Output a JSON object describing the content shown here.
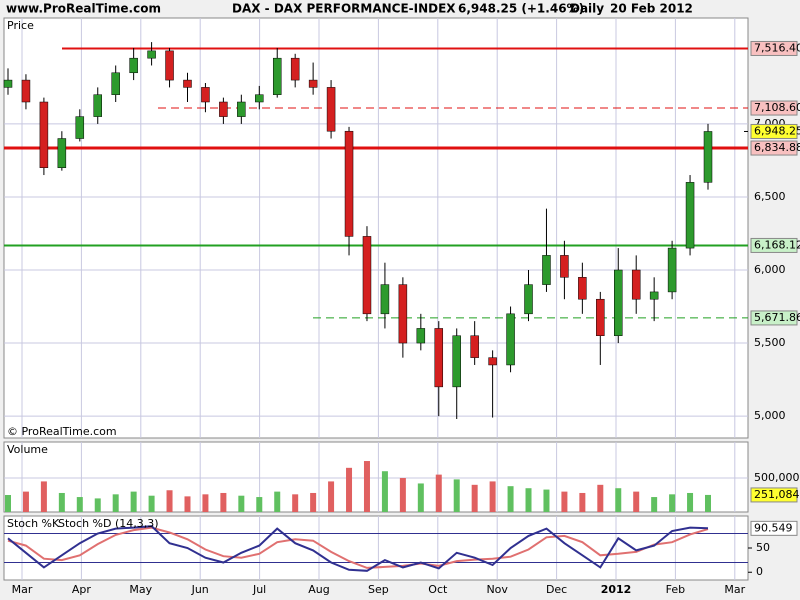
{
  "header": {
    "site": "www.ProRealTime.com",
    "title": "DAX - DAX PERFORMANCE-INDEX",
    "quote": "6,948.25 (+1.46%)",
    "period": "Daily",
    "date": "20 Feb 2012"
  },
  "x_labels": [
    "Mar",
    "Apr",
    "May",
    "Jun",
    "Jul",
    "Aug",
    "Sep",
    "Oct",
    "Nov",
    "Dec",
    "2012",
    "Feb",
    "Mar"
  ],
  "chart_data": [
    {
      "type": "candlestick",
      "label": "Price",
      "footer": "© ProRealTime.com",
      "up_color": "#2d9a2d",
      "down_color": "#d42020",
      "open": [
        7250,
        7300,
        7150,
        6700,
        6900,
        7050,
        7200,
        7350,
        7450,
        7500,
        7300,
        7250,
        7150,
        7050,
        7150,
        7200,
        7450,
        7300,
        7250,
        6950,
        6230,
        5700,
        5900,
        5500,
        5600,
        5200,
        5550,
        5400,
        5350,
        5700,
        5900,
        6100,
        5950,
        5800,
        5550,
        6000,
        5800,
        5850,
        6150,
        6600
      ],
      "high": [
        7380,
        7340,
        7180,
        6950,
        7100,
        7250,
        7400,
        7520,
        7560,
        7520,
        7350,
        7280,
        7180,
        7200,
        7260,
        7520,
        7480,
        7420,
        7300,
        6980,
        6300,
        6050,
        5950,
        5700,
        5650,
        5600,
        5650,
        5450,
        5750,
        6000,
        6420,
        6200,
        6050,
        5850,
        6150,
        6100,
        5950,
        6200,
        6650,
        7000
      ],
      "low": [
        7200,
        7100,
        6650,
        6680,
        6880,
        7000,
        7150,
        7300,
        7400,
        7250,
        7150,
        7080,
        7000,
        7000,
        7100,
        7180,
        7250,
        7200,
        6900,
        6100,
        5650,
        5600,
        5400,
        5450,
        5000,
        4980,
        5350,
        4990,
        5300,
        5650,
        5850,
        5800,
        5700,
        5350,
        5500,
        5700,
        5650,
        5800,
        6100,
        6550
      ],
      "close": [
        7300,
        7150,
        6700,
        6900,
        7050,
        7200,
        7350,
        7450,
        7500,
        7300,
        7250,
        7150,
        7050,
        7150,
        7200,
        7450,
        7300,
        7250,
        6950,
        6230,
        5700,
        5900,
        5500,
        5600,
        5200,
        5550,
        5400,
        5350,
        5700,
        5900,
        6100,
        5950,
        5800,
        5550,
        6000,
        5800,
        5850,
        6150,
        6600,
        6948.25
      ],
      "ylim": [
        4850,
        7725
      ],
      "yticks": [
        {
          "value": 5000,
          "label": "5,000"
        },
        {
          "value": 5500,
          "label": "5,500"
        },
        {
          "value": 6000,
          "label": "6,000"
        },
        {
          "value": 6500,
          "label": "6,500"
        },
        {
          "value": 7000,
          "label": "7,000"
        }
      ],
      "levels": [
        {
          "value": 7516.4,
          "label": "7,516.40",
          "color": "#e01010",
          "dashed": false
        },
        {
          "value": 7108.6,
          "label": "7,108.60",
          "color": "#e01010",
          "dashed": true
        },
        {
          "value": 6834.88,
          "label": "6,834.88",
          "color": "#e01010",
          "dashed": false
        },
        {
          "value": 6168.12,
          "label": "6,168.12",
          "color": "#22a022",
          "dashed": false
        },
        {
          "value": 5671.86,
          "label": "5,671.86",
          "color": "#22a022",
          "dashed": true
        }
      ],
      "last": {
        "value": 6948.25,
        "label": "6,948.25",
        "color": "#ffff30"
      }
    },
    {
      "type": "bar",
      "label": "Volume",
      "values": [
        250000,
        300000,
        450000,
        280000,
        220000,
        200000,
        260000,
        300000,
        240000,
        320000,
        230000,
        260000,
        280000,
        240000,
        220000,
        300000,
        260000,
        280000,
        450000,
        650000,
        750000,
        600000,
        500000,
        420000,
        550000,
        480000,
        400000,
        450000,
        380000,
        350000,
        330000,
        300000,
        280000,
        400000,
        350000,
        300000,
        220000,
        260000,
        280000,
        251084
      ],
      "ylim": [
        0,
        1030000
      ],
      "yticks": [
        {
          "value": 500000,
          "label": "500,000"
        }
      ],
      "last": {
        "value": 251084,
        "label": "251,084",
        "color": "#ffff30"
      }
    },
    {
      "type": "line",
      "label": "Stoch %K",
      "label2": "Stoch %D (14,3,3)",
      "series": [
        {
          "name": "Stoch %K",
          "color": "#303090",
          "values": [
            70,
            40,
            10,
            35,
            60,
            80,
            90,
            92,
            95,
            60,
            50,
            30,
            20,
            40,
            55,
            90,
            60,
            45,
            20,
            5,
            3,
            25,
            10,
            20,
            8,
            40,
            30,
            15,
            50,
            75,
            90,
            60,
            35,
            10,
            70,
            45,
            55,
            85,
            92,
            90.549
          ]
        },
        {
          "name": "Stoch %D",
          "color": "#e07070",
          "values": [
            65,
            55,
            28,
            25,
            35,
            58,
            77,
            87,
            92,
            82,
            68,
            47,
            33,
            30,
            38,
            62,
            68,
            65,
            42,
            23,
            9,
            11,
            13,
            18,
            13,
            23,
            26,
            28,
            32,
            47,
            72,
            75,
            62,
            35,
            38,
            42,
            57,
            62,
            78,
            89
          ]
        }
      ],
      "ylim": [
        -16,
        116
      ],
      "yticks": [
        0,
        50
      ],
      "bands": [
        80,
        20
      ],
      "last": {
        "value": 90.549,
        "label": "90.549",
        "color": "#ffffff"
      }
    }
  ]
}
